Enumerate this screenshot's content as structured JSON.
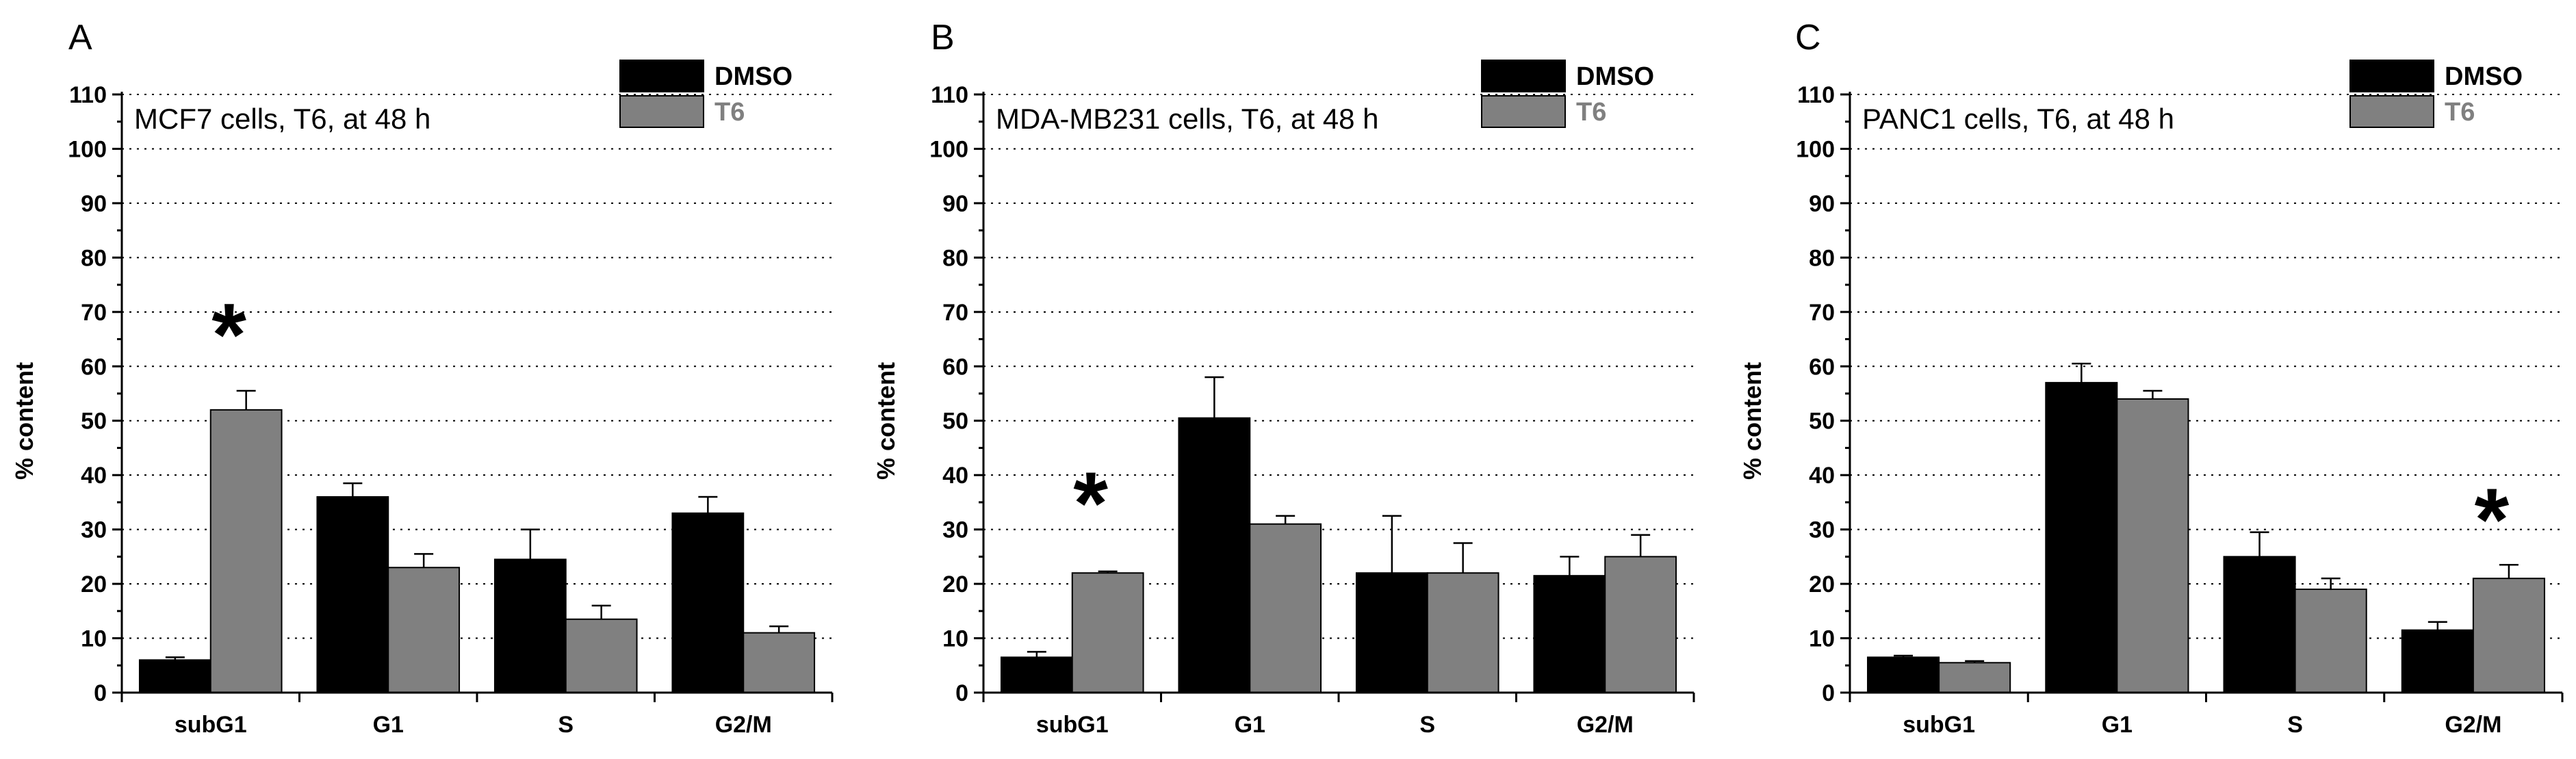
{
  "chart_data": [
    {
      "type": "bar",
      "panel_label": "A",
      "title": "MCF7 cells, T6, at 48 h",
      "ylabel": "% content",
      "xlabel": "",
      "ylim": [
        0,
        110
      ],
      "yticks": [
        0,
        10,
        20,
        30,
        40,
        50,
        60,
        70,
        80,
        90,
        100,
        110
      ],
      "categories": [
        "subG1",
        "G1",
        "S",
        "G2/M"
      ],
      "series": [
        {
          "name": "DMSO",
          "color": "#000000",
          "values": [
            6,
            36,
            24.5,
            33
          ],
          "errors": [
            0.5,
            2.5,
            5.5,
            3
          ]
        },
        {
          "name": "T6",
          "color": "#808080",
          "values": [
            52,
            23,
            13.5,
            11
          ],
          "errors": [
            3.5,
            2.5,
            2.5,
            1.2
          ]
        }
      ],
      "significance": [
        {
          "category": "subG1",
          "series": "T6",
          "mark": "*",
          "y": 69
        }
      ]
    },
    {
      "type": "bar",
      "panel_label": "B",
      "title": "MDA-MB231 cells, T6, at 48 h",
      "ylabel": "% content",
      "xlabel": "",
      "ylim": [
        0,
        110
      ],
      "yticks": [
        0,
        10,
        20,
        30,
        40,
        50,
        60,
        70,
        80,
        90,
        100,
        110
      ],
      "categories": [
        "subG1",
        "G1",
        "S",
        "G2/M"
      ],
      "series": [
        {
          "name": "DMSO",
          "color": "#000000",
          "values": [
            6.5,
            50.5,
            22,
            21.5
          ],
          "errors": [
            1,
            7.5,
            10.5,
            3.5
          ]
        },
        {
          "name": "T6",
          "color": "#808080",
          "values": [
            22,
            31,
            22,
            25
          ],
          "errors": [
            0.3,
            1.5,
            5.5,
            4
          ]
        }
      ],
      "significance": [
        {
          "category": "subG1",
          "series": "T6",
          "mark": "*",
          "y": 38
        }
      ]
    },
    {
      "type": "bar",
      "panel_label": "C",
      "title": "PANC1 cells, T6, at 48 h",
      "ylabel": "% content",
      "xlabel": "",
      "ylim": [
        0,
        110
      ],
      "yticks": [
        0,
        10,
        20,
        30,
        40,
        50,
        60,
        70,
        80,
        90,
        100,
        110
      ],
      "categories": [
        "subG1",
        "G1",
        "S",
        "G2/M"
      ],
      "series": [
        {
          "name": "DMSO",
          "color": "#000000",
          "values": [
            6.5,
            57,
            25,
            11.5
          ],
          "errors": [
            0.3,
            3.5,
            4.5,
            1.5
          ]
        },
        {
          "name": "T6",
          "color": "#808080",
          "values": [
            5.5,
            54,
            19,
            21
          ],
          "errors": [
            0.3,
            1.5,
            2,
            2.5
          ]
        }
      ],
      "significance": [
        {
          "category": "G2/M",
          "series": "T6",
          "mark": "*",
          "y": 35
        }
      ]
    }
  ]
}
